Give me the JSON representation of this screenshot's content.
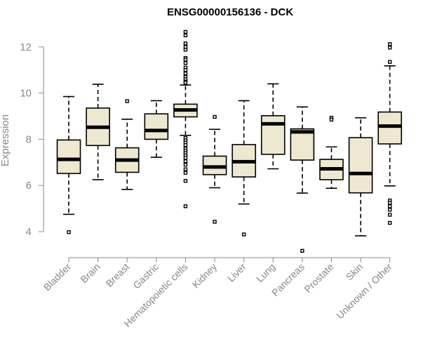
{
  "chart_data": {
    "type": "box",
    "title": "ENSG00000156136 - DCK",
    "ylabel": "Expression",
    "xlabel": "",
    "ylim": [
      3.0,
      12.6
    ],
    "yticks": [
      4,
      6,
      8,
      10,
      12
    ],
    "colors": {
      "box_fill": "#efe8d0",
      "axis": "#888888",
      "line": "#000000"
    },
    "categories": [
      "Bladder",
      "Brain",
      "Breast",
      "Gastric",
      "Hematopoietic cells",
      "Kidney",
      "Liver",
      "Lung",
      "Pancreas",
      "Prostate",
      "Skin",
      "Unknown / Other"
    ],
    "boxes": [
      {
        "min": 4.75,
        "q1": 6.52,
        "median": 7.13,
        "q3": 7.97,
        "max": 9.85,
        "outliers": [
          3.98
        ]
      },
      {
        "min": 6.25,
        "q1": 7.73,
        "median": 8.52,
        "q3": 9.35,
        "max": 10.38,
        "outliers": []
      },
      {
        "min": 5.83,
        "q1": 6.57,
        "median": 7.1,
        "q3": 7.63,
        "max": 8.87,
        "outliers": [
          9.65
        ]
      },
      {
        "min": 7.22,
        "q1": 8.0,
        "median": 8.38,
        "q3": 9.1,
        "max": 9.67,
        "outliers": []
      },
      {
        "min": 8.17,
        "q1": 8.97,
        "median": 9.27,
        "q3": 9.52,
        "max": 10.35,
        "outliers": [
          12.65,
          12.5,
          12.15,
          12.0,
          11.88,
          11.52,
          11.45,
          11.3,
          11.1,
          11.0,
          10.85,
          10.7,
          10.6,
          10.5,
          10.45,
          8.05,
          7.95,
          7.85,
          7.75,
          7.6,
          7.5,
          7.4,
          7.3,
          7.2,
          7.05,
          6.9,
          6.7,
          6.55,
          6.2,
          5.1
        ]
      },
      {
        "min": 5.9,
        "q1": 6.47,
        "median": 6.8,
        "q3": 7.27,
        "max": 8.43,
        "outliers": [
          8.97,
          4.43
        ]
      },
      {
        "min": 5.2,
        "q1": 6.37,
        "median": 7.03,
        "q3": 7.77,
        "max": 9.67,
        "outliers": [
          3.88
        ]
      },
      {
        "min": 6.72,
        "q1": 7.35,
        "median": 8.67,
        "q3": 9.02,
        "max": 10.4,
        "outliers": []
      },
      {
        "min": 5.67,
        "q1": 7.1,
        "median": 8.32,
        "q3": 8.45,
        "max": 9.4,
        "outliers": [
          3.17
        ]
      },
      {
        "min": 5.88,
        "q1": 6.25,
        "median": 6.72,
        "q3": 7.13,
        "max": 7.67,
        "outliers": [
          8.93,
          8.85
        ]
      },
      {
        "min": 3.82,
        "q1": 5.68,
        "median": 6.52,
        "q3": 8.07,
        "max": 8.93,
        "outliers": []
      },
      {
        "min": 5.98,
        "q1": 7.8,
        "median": 8.57,
        "q3": 9.18,
        "max": 11.18,
        "outliers": [
          12.12,
          11.97,
          11.35,
          5.35,
          5.25,
          5.1,
          4.95,
          4.73,
          4.38
        ]
      }
    ]
  }
}
